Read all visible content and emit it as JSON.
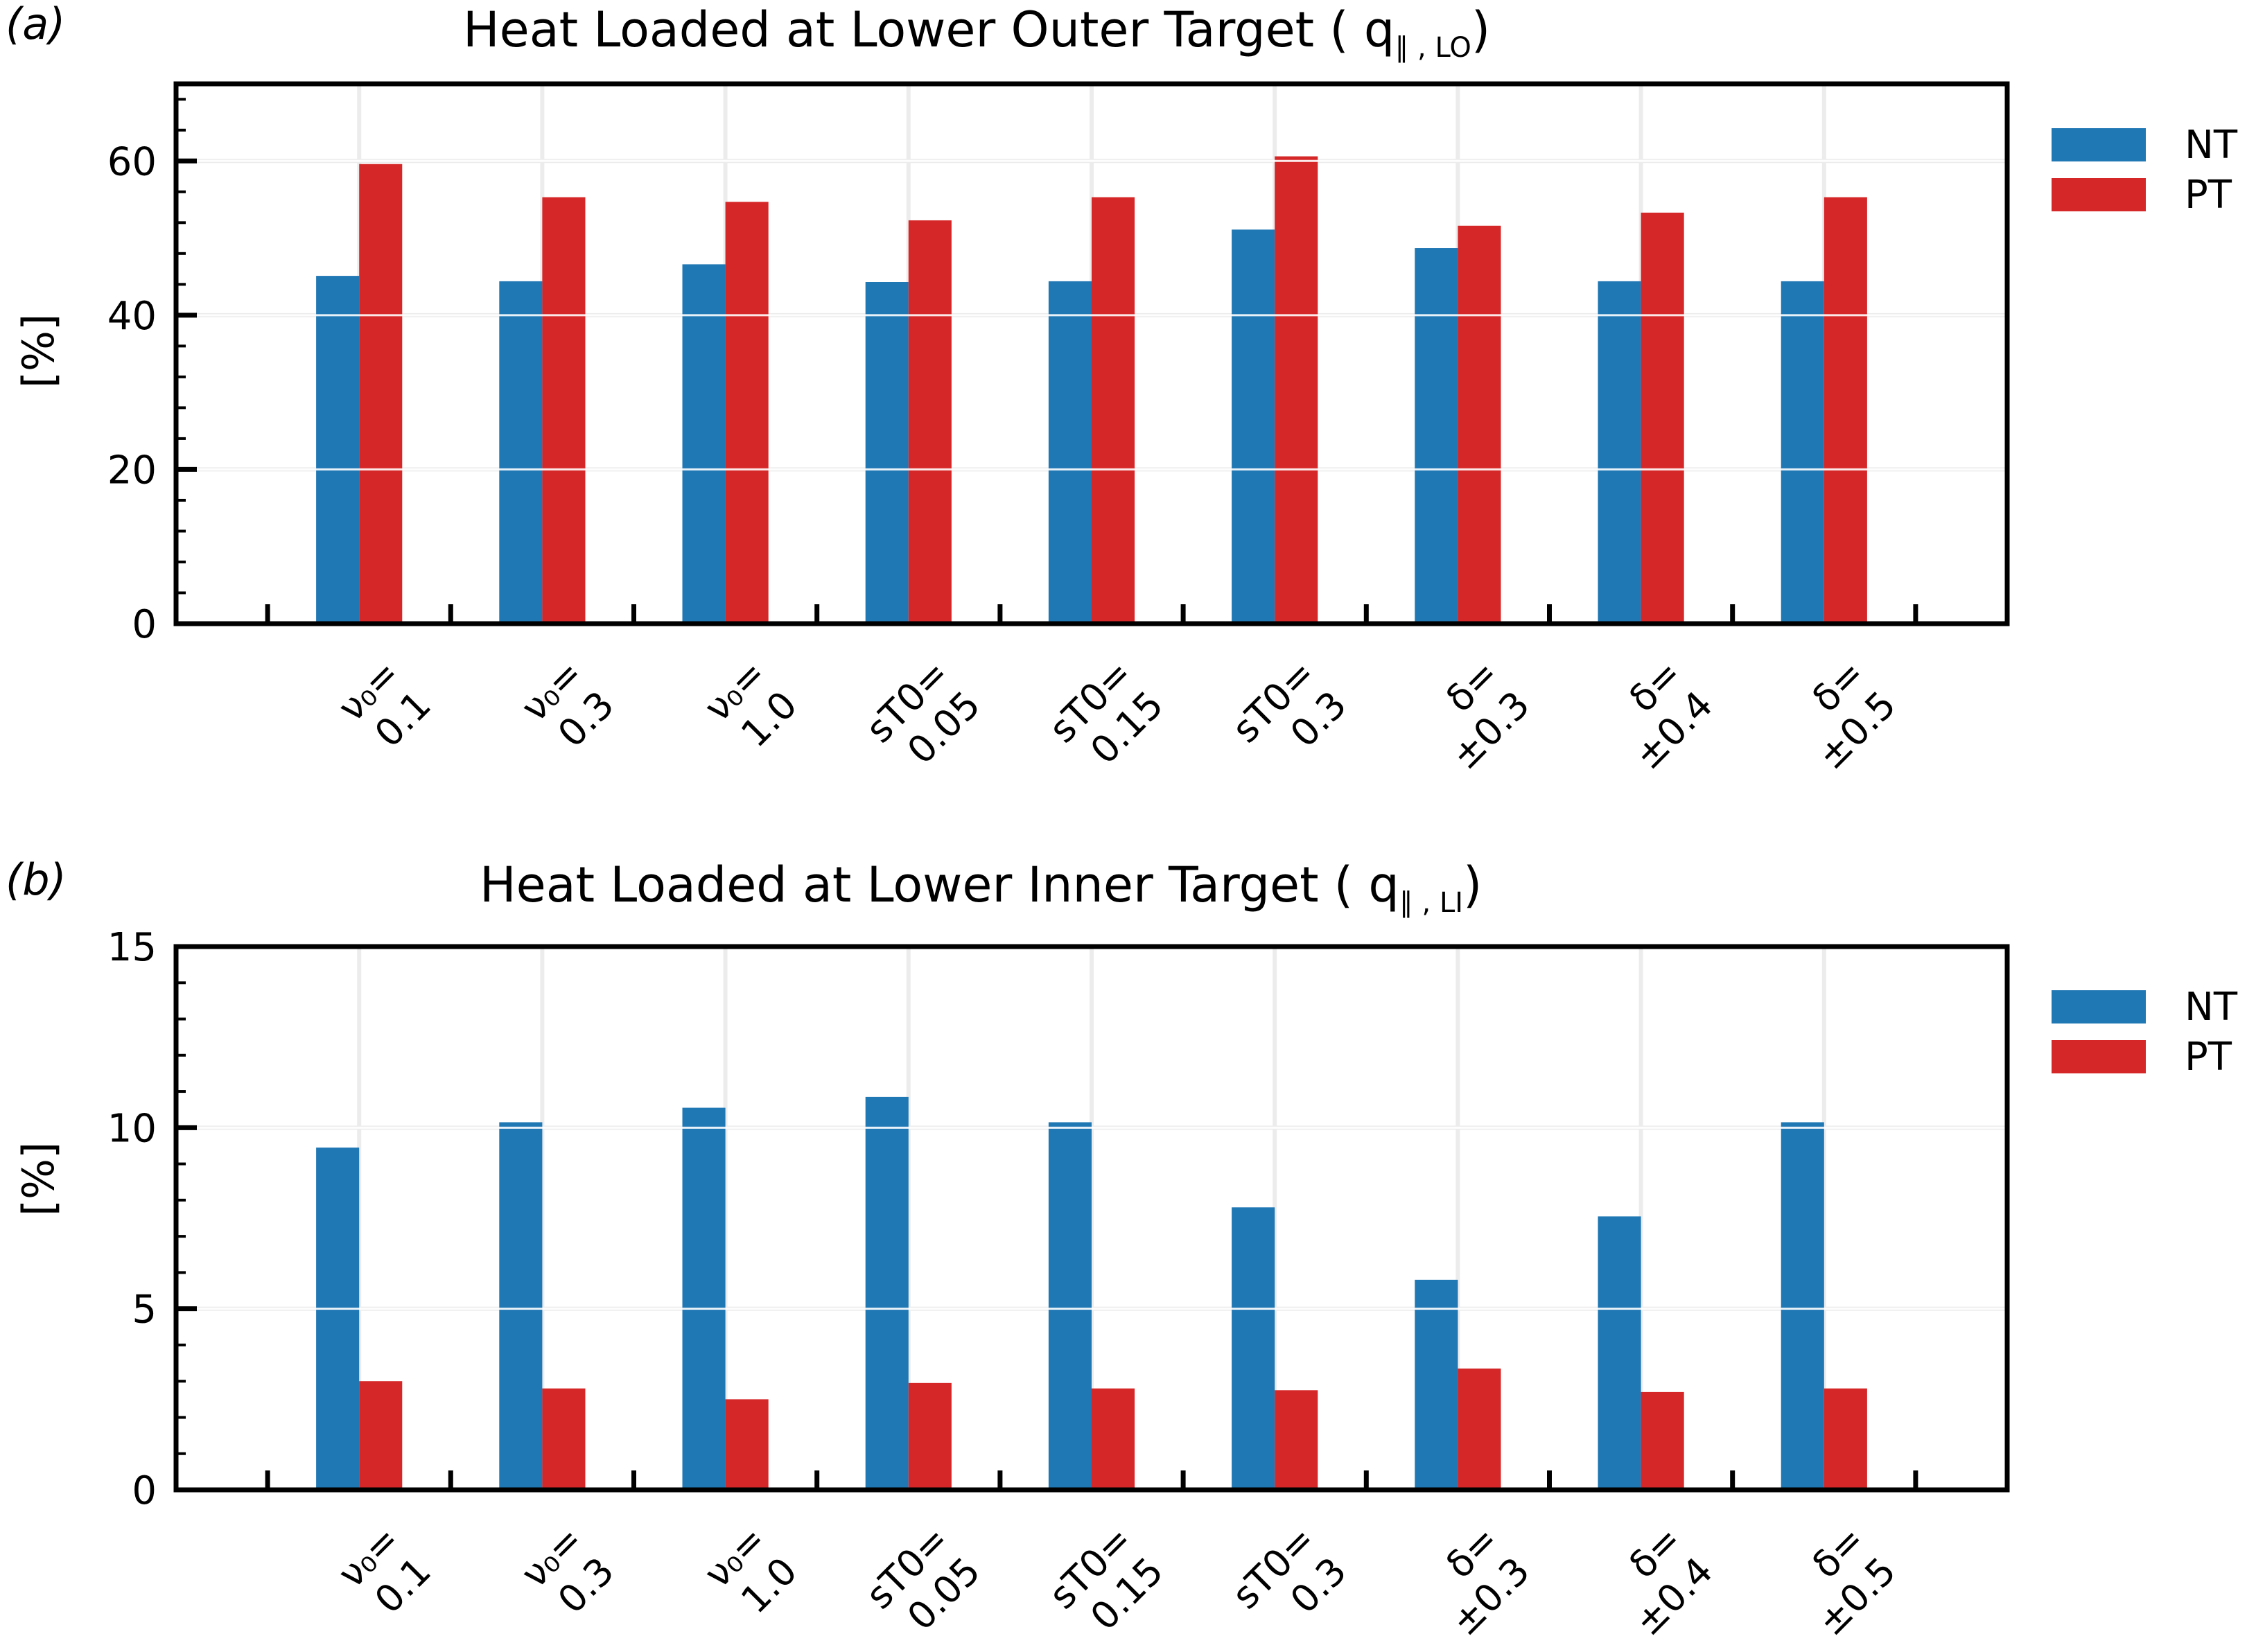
{
  "chart_data": [
    {
      "type": "bar",
      "panel_label": "(a)",
      "title": "Heat Loaded at Lower Outer Target ( q",
      "title_sub": "∥ , LO",
      "title_end": ")",
      "xlabel": "",
      "ylabel": "[%]",
      "ylim": [
        0,
        70
      ],
      "yticks": [
        0,
        20,
        40,
        60
      ],
      "ytick_labels": [
        "0",
        "20",
        "40",
        "60"
      ],
      "grid": true,
      "legend_position": "right-outside",
      "categories": [
        "ν0= 0.1",
        "ν0= 0.3",
        "ν0= 1.0",
        "sT0= 0.05",
        "sT0= 0.15",
        "sT0= 0.3",
        "δ= ±0.3",
        "δ= ±0.4",
        "δ= ±0.5"
      ],
      "series": [
        {
          "name": "NT",
          "color": "#1f77b4",
          "values": [
            45.1,
            44.4,
            46.6,
            44.3,
            44.4,
            51.1,
            48.7,
            44.4,
            44.4
          ]
        },
        {
          "name": "PT",
          "color": "#d62728",
          "values": [
            59.6,
            55.3,
            54.7,
            52.3,
            55.3,
            60.6,
            51.6,
            53.3,
            55.3
          ]
        }
      ]
    },
    {
      "type": "bar",
      "panel_label": "(b)",
      "title": "Heat Loaded at Lower Inner Target ( q",
      "title_sub": "∥ , LI",
      "title_end": ")",
      "xlabel": "",
      "ylabel": "[%]",
      "ylim": [
        0,
        15
      ],
      "yticks": [
        0,
        5,
        10,
        15
      ],
      "ytick_labels": [
        "0",
        "5",
        "10",
        "15"
      ],
      "grid": true,
      "legend_position": "right-outside",
      "categories": [
        "ν0= 0.1",
        "ν0= 0.3",
        "ν0= 1.0",
        "sT0= 0.05",
        "sT0= 0.15",
        "sT0= 0.3",
        "δ= ±0.3",
        "δ= ±0.4",
        "δ= ±0.5"
      ],
      "series": [
        {
          "name": "NT",
          "color": "#1f77b4",
          "values": [
            9.45,
            10.15,
            10.55,
            10.85,
            10.15,
            7.8,
            5.8,
            7.55,
            10.15
          ]
        },
        {
          "name": "PT",
          "color": "#d62728",
          "values": [
            3.0,
            2.8,
            2.5,
            2.95,
            2.8,
            2.75,
            3.35,
            2.7,
            2.8
          ]
        }
      ]
    }
  ],
  "tick_labels": [
    {
      "top": "ν₀=",
      "bottom": "0.1"
    },
    {
      "top": "ν₀=",
      "bottom": "0.3"
    },
    {
      "top": "ν₀=",
      "bottom": "1.0"
    },
    {
      "top": "sT0=",
      "bottom": "0.05"
    },
    {
      "top": "sT0=",
      "bottom": "0.15"
    },
    {
      "top": "sT0=",
      "bottom": "0.3"
    },
    {
      "top": "δ=",
      "bottom": "±0.3"
    },
    {
      "top": "δ=",
      "bottom": "±0.4"
    },
    {
      "top": "δ=",
      "bottom": "±0.5"
    }
  ],
  "legend": [
    {
      "label": "NT",
      "color": "#1f77b4"
    },
    {
      "label": "PT",
      "color": "#d62728"
    }
  ]
}
